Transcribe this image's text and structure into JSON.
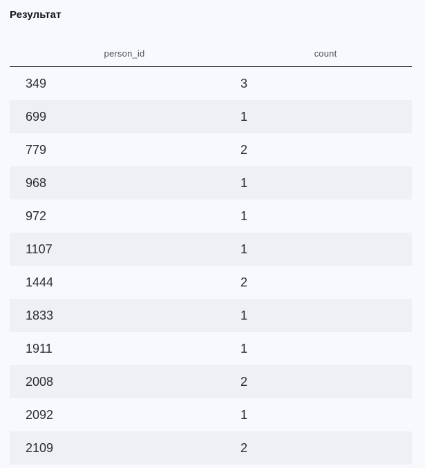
{
  "title": "Результат",
  "table": {
    "columns": [
      "person_id",
      "count"
    ],
    "rows": [
      [
        "349",
        "3"
      ],
      [
        "699",
        "1"
      ],
      [
        "779",
        "2"
      ],
      [
        "968",
        "1"
      ],
      [
        "972",
        "1"
      ],
      [
        "1107",
        "1"
      ],
      [
        "1444",
        "2"
      ],
      [
        "1833",
        "1"
      ],
      [
        "1911",
        "1"
      ],
      [
        "2008",
        "2"
      ],
      [
        "2092",
        "1"
      ],
      [
        "2109",
        "2"
      ]
    ]
  }
}
